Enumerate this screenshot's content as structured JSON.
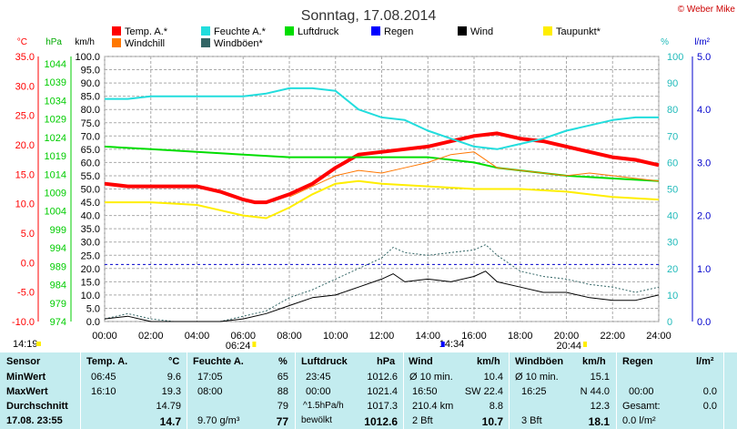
{
  "title": "Sonntag, 17.08.2014",
  "copyright": "© Weber Mike",
  "legend": [
    {
      "label": "Temp. A.*",
      "color": "#ff0000"
    },
    {
      "label": "Feuchte A.*",
      "color": "#22dddd"
    },
    {
      "label": "Luftdruck",
      "color": "#00dd00"
    },
    {
      "label": "Regen",
      "color": "#0000ff"
    },
    {
      "label": "Wind",
      "color": "#000000"
    },
    {
      "label": "Taupunkt*",
      "color": "#ffee00"
    },
    {
      "label": "Windchill",
      "color": "#ff7700"
    },
    {
      "label": "Windböen*",
      "color": "#336666"
    }
  ],
  "axis_units": {
    "temp": "°C",
    "pressure": "hPa",
    "wind": "km/h",
    "humidity": "%",
    "rain": "l/m²"
  },
  "chart_data": {
    "type": "line",
    "x_ticks": [
      "00:00",
      "02:00",
      "04:00",
      "06:00",
      "08:00",
      "10:00",
      "12:00",
      "14:00",
      "16:00",
      "18:00",
      "20:00",
      "22:00",
      "24:00"
    ],
    "temp_ticks": [
      "35.0",
      "30.0",
      "25.0",
      "20.0",
      "15.0",
      "10.0",
      "5.0",
      "0.0",
      "-5.0",
      "-10.0"
    ],
    "pressure_ticks": [
      "1044",
      "1039",
      "1034",
      "1029",
      "1024",
      "1019",
      "1014",
      "1009",
      "1004",
      "999",
      "994",
      "989",
      "984",
      "979",
      "974"
    ],
    "wind_ticks": [
      "100.0",
      "95.0",
      "90.0",
      "85.0",
      "80.0",
      "75.0",
      "70.0",
      "65.0",
      "60.0",
      "55.0",
      "50.0",
      "45.0",
      "40.0",
      "35.0",
      "30.0",
      "25.0",
      "20.0",
      "15.0",
      "10.0",
      "5.0",
      "0.0"
    ],
    "humidity_ticks": [
      "100",
      "90",
      "80",
      "70",
      "60",
      "50",
      "40",
      "30",
      "20",
      "10",
      "0"
    ],
    "rain_ticks": [
      "5.0",
      "4.0",
      "3.0",
      "2.0",
      "1.0",
      "0.0"
    ],
    "ylim_wind": [
      0,
      100
    ],
    "series": [
      {
        "name": "Temp. A.*",
        "color": "#ff0000",
        "width": 4,
        "x": [
          0,
          1,
          2,
          3,
          4,
          5,
          6,
          6.5,
          7,
          8,
          9,
          10,
          11,
          12,
          13,
          14,
          15,
          16,
          17,
          18,
          19,
          20,
          21,
          22,
          23,
          24
        ],
        "y": [
          52,
          51,
          51,
          51,
          51,
          49,
          46,
          45,
          45,
          48,
          52,
          58,
          63,
          64,
          65,
          66,
          68,
          70,
          71,
          69,
          68,
          66,
          64,
          62,
          61,
          59
        ]
      },
      {
        "name": "Feuchte A.*",
        "color": "#22dddd",
        "width": 2,
        "x": [
          0,
          1,
          2,
          3,
          4,
          5,
          6,
          7,
          8,
          9,
          10,
          11,
          12,
          13,
          14,
          15,
          16,
          17,
          18,
          19,
          20,
          21,
          22,
          23,
          24
        ],
        "y": [
          84,
          84,
          85,
          85,
          85,
          85,
          85,
          86,
          88,
          88,
          87,
          80,
          77,
          76,
          72,
          69,
          66,
          65,
          67,
          69,
          72,
          74,
          76,
          77,
          77
        ]
      },
      {
        "name": "Luftdruck",
        "color": "#00dd00",
        "width": 2,
        "x": [
          0,
          2,
          4,
          6,
          8,
          10,
          12,
          14,
          16,
          17,
          18,
          20,
          22,
          24
        ],
        "y": [
          66,
          65,
          64,
          63,
          62,
          62,
          62,
          62,
          60,
          58,
          57,
          55,
          54,
          53
        ]
      },
      {
        "name": "Taupunkt*",
        "color": "#ffee00",
        "width": 2,
        "x": [
          0,
          2,
          4,
          5,
          6,
          7,
          8,
          9,
          10,
          11,
          12,
          14,
          16,
          18,
          20,
          22,
          24
        ],
        "y": [
          45,
          45,
          44,
          42,
          40,
          39,
          43,
          48,
          52,
          53,
          52,
          51,
          50,
          50,
          49,
          47,
          46
        ]
      },
      {
        "name": "Windchill",
        "color": "#ff7700",
        "width": 1,
        "x": [
          8,
          9,
          10,
          11,
          12,
          13,
          14,
          15,
          16,
          17,
          18,
          19,
          20,
          21,
          22,
          23,
          24
        ],
        "y": [
          47,
          51,
          55,
          57,
          56,
          58,
          60,
          63,
          64,
          58,
          57,
          56,
          55,
          56,
          55,
          54,
          53
        ]
      },
      {
        "name": "Windböen*",
        "color": "#336666",
        "width": 1,
        "dash": true,
        "x": [
          0,
          1,
          2,
          3,
          4,
          5,
          6,
          7,
          8,
          9,
          10,
          11,
          12,
          12.5,
          13,
          14,
          15,
          16,
          16.5,
          17,
          18,
          19,
          20,
          21,
          22,
          23,
          24
        ],
        "y": [
          1,
          3,
          1,
          0,
          0,
          0,
          2,
          4,
          9,
          12,
          16,
          20,
          24,
          28,
          26,
          25,
          26,
          27,
          29,
          25,
          19,
          17,
          16,
          14,
          13,
          11,
          13
        ]
      },
      {
        "name": "Wind",
        "color": "#000000",
        "width": 1,
        "x": [
          0,
          1,
          2,
          3,
          4,
          5,
          6,
          7,
          8,
          9,
          10,
          11,
          12,
          12.5,
          13,
          14,
          15,
          16,
          16.5,
          17,
          18,
          19,
          20,
          21,
          22,
          23,
          24
        ],
        "y": [
          1,
          2,
          0,
          0,
          0,
          0,
          1,
          3,
          6,
          9,
          10,
          13,
          16,
          18,
          15,
          16,
          15,
          17,
          19,
          15,
          13,
          11,
          11,
          9,
          8,
          8,
          10
        ]
      }
    ],
    "zero_line_wind": 21.5
  },
  "markers": [
    {
      "time": "14:19",
      "pos": 0.0
    },
    {
      "time": "06:24",
      "pos": 6.4
    },
    {
      "time": "14:34",
      "pos": 14.57
    },
    {
      "time": "20:44",
      "pos": 20.73
    }
  ],
  "stats": {
    "headers": {
      "sensor": "Sensor",
      "temp": "Temp. A.",
      "temp_u": "°C",
      "hum": "Feuchte A.",
      "hum_u": "%",
      "pres": "Luftdruck",
      "pres_u": "hPa",
      "wind": "Wind",
      "wind_u": "km/h",
      "gust": "Windböen",
      "gust_u": "km/h",
      "rain": "Regen",
      "rain_u": "l/m²"
    },
    "rows": [
      {
        "label": "MinWert",
        "t_time": "06:45",
        "t_val": "9.6",
        "h_time": "17:05",
        "h_val": "65",
        "p_time": "23:45",
        "p_val": "1012.6",
        "w_time": "Ø 10 min.",
        "w_val": "10.4",
        "g_time": "Ø 10 min.",
        "g_val": "15.1",
        "r_time": "",
        "r_val": ""
      },
      {
        "label": "MaxWert",
        "t_time": "16:10",
        "t_val": "19.3",
        "h_time": "08:00",
        "h_val": "88",
        "p_time": "00:00",
        "p_val": "1021.4",
        "w_time": "16:50",
        "w_dir": "SW 22.4",
        "w_val": "",
        "g_time": "16:25",
        "g_val": "N 44.0",
        "r_time": "00:00",
        "r_val": "0.0"
      },
      {
        "label": "Durchschnitt",
        "t_time": "",
        "t_val": "14.79",
        "h_time": "",
        "h_val": "79",
        "p_time": "^1.5hPa/h",
        "p_val": "1017.3",
        "w_time": "210.4 km",
        "w_val": "8.8",
        "g_time": "",
        "g_val": "12.3",
        "r_time": "Gesamt:",
        "r_val": "0.0"
      },
      {
        "label": "17.08. 23:55",
        "t_time": "",
        "t_val": "14.7",
        "h_time": "9.70 g/m³",
        "h_val": "77",
        "p_time": "bewölkt",
        "p_val": "1012.6",
        "w_time": "2 Bft",
        "w_val": "10.7",
        "g_time": "3 Bft",
        "g_val": "18.1",
        "r_time": "0.0 l/m²",
        "r_val": ""
      }
    ]
  }
}
